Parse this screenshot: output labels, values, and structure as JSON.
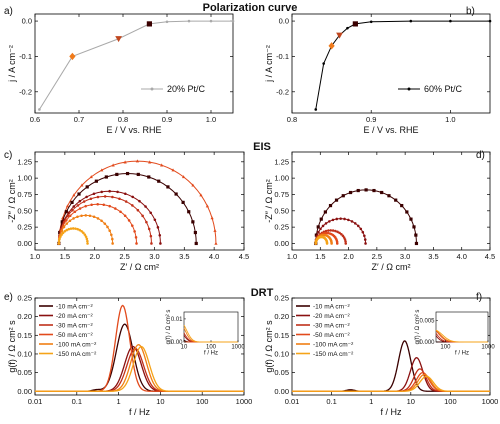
{
  "headings": {
    "top": "Polarization curve",
    "mid": "EIS",
    "bottom": "DRT"
  },
  "colors": {
    "c10": "#3a0000",
    "c20": "#8a1010",
    "c30": "#c0301a",
    "c50": "#e24a1c",
    "c100": "#f07e14",
    "c150": "#f5a318",
    "grey": "#a9a9a9",
    "black": "#000000",
    "marker_orange": "#f07a1a",
    "marker_brown": "#c0461e",
    "marker_dark": "#3a0000"
  },
  "chart_data": [
    {
      "id": "a",
      "panel_label": "a)",
      "type": "line",
      "xlabel": "E / V vs. RHE",
      "ylabel": "j / A cm⁻²",
      "xlim": [
        0.6,
        1.05
      ],
      "ylim": [
        -0.26,
        0.02
      ],
      "xticks": [
        0.6,
        0.7,
        0.8,
        0.9,
        1.0
      ],
      "xticklabels": [
        "0.6",
        "0.7",
        "0.8",
        "0.9",
        "1.0"
      ],
      "yticks": [
        -0.2,
        -0.1,
        0.0
      ],
      "yticklabels": [
        "-0.2",
        "-0.1",
        "0.0"
      ],
      "legend": "20% Pt/C",
      "legend_position": "lower-right",
      "series": [
        {
          "name": "20% Pt/C",
          "x": [
            0.61,
            0.685,
            0.79,
            0.86,
            0.9,
            0.95,
            1.0,
            1.05
          ],
          "y": [
            -0.25,
            -0.1,
            -0.05,
            -0.008,
            -0.002,
            0.0,
            0.0,
            0.0
          ]
        }
      ],
      "markers": [
        {
          "x": 0.685,
          "y": -0.1,
          "shape": "diamond",
          "color": "#f07a1a"
        },
        {
          "x": 0.79,
          "y": -0.05,
          "shape": "triangle-down",
          "color": "#c0461e"
        },
        {
          "x": 0.86,
          "y": -0.008,
          "shape": "square",
          "color": "#3a0000"
        }
      ]
    },
    {
      "id": "b",
      "panel_label": "b)",
      "type": "line",
      "xlabel": "E / V vs. RHE",
      "ylabel": "j / A cm⁻²",
      "xlim": [
        0.8,
        1.05
      ],
      "ylim": [
        -0.26,
        0.02
      ],
      "xticks": [
        0.8,
        0.9,
        1.0
      ],
      "xticklabels": [
        "0.8",
        "0.9",
        "1.0"
      ],
      "yticks": [
        -0.2,
        -0.1,
        0.0
      ],
      "yticklabels": [
        "-0.2",
        "-0.1",
        "0.0"
      ],
      "legend": "60% Pt/C",
      "legend_position": "lower-right",
      "series": [
        {
          "name": "60% Pt/C",
          "x": [
            0.83,
            0.84,
            0.85,
            0.86,
            0.87,
            0.88,
            0.9,
            0.95,
            1.0,
            1.05
          ],
          "y": [
            -0.25,
            -0.12,
            -0.07,
            -0.04,
            -0.02,
            -0.008,
            -0.002,
            0.0,
            0.0,
            0.0
          ]
        }
      ],
      "markers": [
        {
          "x": 0.85,
          "y": -0.07,
          "shape": "diamond",
          "color": "#f07a1a"
        },
        {
          "x": 0.86,
          "y": -0.04,
          "shape": "triangle-down",
          "color": "#c0461e"
        },
        {
          "x": 0.88,
          "y": -0.008,
          "shape": "square",
          "color": "#3a0000"
        }
      ]
    },
    {
      "id": "c",
      "panel_label": "c)",
      "type": "scatter",
      "xlabel": "Z′ / Ω cm²",
      "ylabel": "-Z″ / Ω cm²",
      "xlim": [
        1.0,
        4.5
      ],
      "ylim": [
        -0.1,
        1.4
      ],
      "xticks": [
        1.0,
        1.5,
        2.0,
        2.5,
        3.0,
        3.5,
        4.0,
        4.5
      ],
      "xticklabels": [
        "1.0",
        "1.5",
        "2.0",
        "2.5",
        "3.0",
        "3.5",
        "4.0",
        "4.5"
      ],
      "yticks": [
        0.0,
        0.25,
        0.5,
        0.75,
        1.0,
        1.25
      ],
      "yticklabels": [
        "0.00",
        "0.25",
        "0.50",
        "0.75",
        "1.00",
        "1.25"
      ],
      "arcs": [
        {
          "x0": 1.4,
          "x1": 4.03,
          "h": 1.26,
          "color": "#e24a1c",
          "marker": "tri-up"
        },
        {
          "x0": 1.4,
          "x1": 3.7,
          "h": 1.07,
          "color": "#3a0000",
          "marker": "square"
        },
        {
          "x0": 1.4,
          "x1": 3.1,
          "h": 0.8,
          "color": "#8a1010",
          "marker": "circle"
        },
        {
          "x0": 1.4,
          "x1": 2.95,
          "h": 0.72,
          "color": "#c0301a",
          "marker": "circle"
        },
        {
          "x0": 1.4,
          "x1": 2.7,
          "h": 0.6,
          "color": "#e24a1c",
          "marker": "circle"
        },
        {
          "x0": 1.4,
          "x1": 2.3,
          "h": 0.43,
          "color": "#f07e14",
          "marker": "circle"
        },
        {
          "x0": 1.4,
          "x1": 1.88,
          "h": 0.23,
          "color": "#f5a318",
          "marker": "circle"
        }
      ]
    },
    {
      "id": "d",
      "panel_label": "d)",
      "type": "scatter",
      "xlabel": "Z′ / Ω cm²",
      "ylabel": "-Z″ / Ω cm²",
      "xlim": [
        1.0,
        4.5
      ],
      "ylim": [
        -0.1,
        1.4
      ],
      "xticks": [
        1.0,
        1.5,
        2.0,
        2.5,
        3.0,
        3.5,
        4.0,
        4.5
      ],
      "xticklabels": [
        "1.0",
        "1.5",
        "2.0",
        "2.5",
        "3.0",
        "3.5",
        "4.0",
        "4.5"
      ],
      "yticks": [
        0.0,
        0.25,
        0.5,
        0.75,
        1.0,
        1.25
      ],
      "yticklabels": [
        "0.00",
        "0.25",
        "0.50",
        "0.75",
        "1.00",
        "1.25"
      ],
      "arcs": [
        {
          "x0": 1.42,
          "x1": 3.2,
          "h": 0.82,
          "color": "#3a0000",
          "marker": "square"
        },
        {
          "x0": 1.42,
          "x1": 2.3,
          "h": 0.38,
          "color": "#8a1010",
          "marker": "circle"
        },
        {
          "x0": 1.42,
          "x1": 1.95,
          "h": 0.2,
          "color": "#c0301a",
          "marker": "circle"
        },
        {
          "x0": 1.42,
          "x1": 1.8,
          "h": 0.16,
          "color": "#e24a1c",
          "marker": "circle"
        },
        {
          "x0": 1.42,
          "x1": 1.7,
          "h": 0.13,
          "color": "#f07e14",
          "marker": "circle"
        },
        {
          "x0": 1.42,
          "x1": 1.62,
          "h": 0.1,
          "color": "#f5a318",
          "marker": "circle"
        }
      ]
    },
    {
      "id": "e",
      "panel_label": "e)",
      "type": "line",
      "xlabel": "f / Hz",
      "ylabel": "g(f) / Ω cm² s",
      "xscale": "log",
      "xlim": [
        0.01,
        1000
      ],
      "ylim": [
        -0.01,
        0.25
      ],
      "xticks": [
        0.01,
        0.1,
        1,
        10,
        100,
        1000
      ],
      "xticklabels": [
        "0.01",
        "0.1",
        "1",
        "10",
        "100",
        "1000"
      ],
      "yticks": [
        0.0,
        0.05,
        0.1,
        0.15,
        0.2,
        0.25
      ],
      "yticklabels": [
        "0.00",
        "0.05",
        "0.10",
        "0.15",
        "0.20",
        "0.25"
      ],
      "legend_position": "top-left",
      "series": [
        {
          "name": "-10 mA cm⁻²",
          "color": "#3a0000",
          "peaks": [
            {
              "c": 1.4,
              "w": 0.28,
              "a": 0.18
            },
            {
              "c": 0.3,
              "w": 0.15,
              "a": 0.004
            }
          ]
        },
        {
          "name": "-20 mA cm⁻²",
          "color": "#8a1010",
          "peaks": [
            {
              "c": 2.2,
              "w": 0.28,
              "a": 0.12
            }
          ]
        },
        {
          "name": "-30 mA cm⁻²",
          "color": "#c0301a",
          "peaks": [
            {
              "c": 2.5,
              "w": 0.28,
              "a": 0.115
            }
          ]
        },
        {
          "name": "-50 mA cm⁻²",
          "color": "#e24a1c",
          "peaks": [
            {
              "c": 1.25,
              "w": 0.24,
              "a": 0.23
            }
          ]
        },
        {
          "name": "-100 mA cm⁻²",
          "color": "#f07e14",
          "peaks": [
            {
              "c": 3.0,
              "w": 0.27,
              "a": 0.125
            }
          ]
        },
        {
          "name": "-150 mA cm⁻²",
          "color": "#f5a318",
          "peaks": [
            {
              "c": 3.5,
              "w": 0.27,
              "a": 0.12
            }
          ]
        }
      ],
      "inset": {
        "xscale": "log",
        "xlim": [
          10,
          1000
        ],
        "ylim": [
          0,
          0.013
        ],
        "xticks": [
          10,
          100,
          1000
        ],
        "xticklabels": [
          "10",
          "100",
          "1000"
        ],
        "yticks": [
          0.0,
          0.01
        ],
        "yticklabels": [
          "0.00",
          "0.01"
        ],
        "xlabel": "f / Hz",
        "ylabel": "g(f) / Ω cm² s"
      }
    },
    {
      "id": "f",
      "panel_label": "f)",
      "type": "line",
      "xlabel": "f / Hz",
      "ylabel": "g(f) / Ω cm² s",
      "xscale": "log",
      "xlim": [
        0.01,
        1000
      ],
      "ylim": [
        -0.01,
        0.25
      ],
      "xticks": [
        0.01,
        0.1,
        1,
        10,
        100,
        1000
      ],
      "xticklabels": [
        "0.01",
        "0.1",
        "1",
        "10",
        "100",
        "1000"
      ],
      "yticks": [
        0.0,
        0.05,
        0.1,
        0.15,
        0.2,
        0.25
      ],
      "yticklabels": [
        "0.00",
        "0.05",
        "0.10",
        "0.15",
        "0.20",
        "0.25"
      ],
      "legend_position": "top-left",
      "series": [
        {
          "name": "-10 mA cm⁻²",
          "color": "#3a0000",
          "peaks": [
            {
              "c": 7,
              "w": 0.22,
              "a": 0.135
            },
            {
              "c": 0.3,
              "w": 0.15,
              "a": 0.004
            }
          ]
        },
        {
          "name": "-20 mA cm⁻²",
          "color": "#8a1010",
          "peaks": [
            {
              "c": 14,
              "w": 0.22,
              "a": 0.09
            }
          ]
        },
        {
          "name": "-30 mA cm⁻²",
          "color": "#c0301a",
          "peaks": [
            {
              "c": 17,
              "w": 0.22,
              "a": 0.06
            }
          ]
        },
        {
          "name": "-50 mA cm⁻²",
          "color": "#e24a1c",
          "peaks": [
            {
              "c": 20,
              "w": 0.23,
              "a": 0.05
            }
          ]
        },
        {
          "name": "-100 mA cm⁻²",
          "color": "#f07e14",
          "peaks": [
            {
              "c": 22,
              "w": 0.23,
              "a": 0.045
            }
          ]
        },
        {
          "name": "-150 mA cm⁻²",
          "color": "#f5a318",
          "peaks": [
            {
              "c": 25,
              "w": 0.24,
              "a": 0.04
            }
          ]
        }
      ],
      "inset": {
        "xscale": "log",
        "xlim": [
          60,
          1000
        ],
        "ylim": [
          0,
          0.007
        ],
        "xticks": [
          100,
          1000
        ],
        "xticklabels": [
          "100",
          "1000"
        ],
        "yticks": [
          0.0,
          0.005
        ],
        "yticklabels": [
          "0.000",
          "0.005"
        ],
        "xlabel": "f / Hz",
        "ylabel": "g(f) / Ω cm² s"
      }
    }
  ]
}
